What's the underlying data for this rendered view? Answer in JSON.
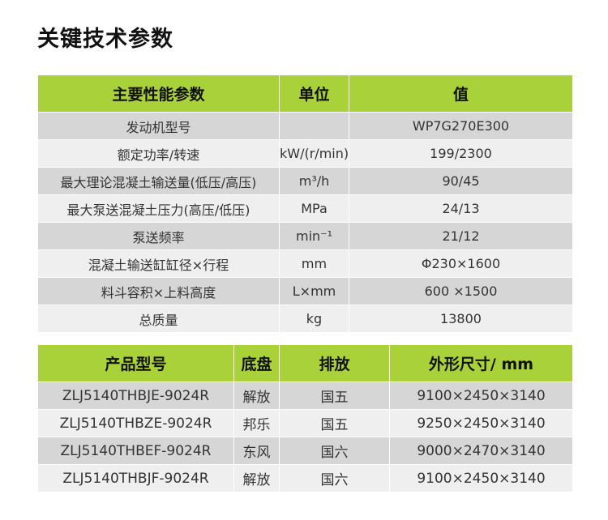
{
  "title": "关键技术参数",
  "spec_table": {
    "headers": [
      "主要性能参数",
      "单位",
      "值"
    ],
    "rows": [
      {
        "param": "发动机型号",
        "unit": "",
        "value": "WP7G270E300"
      },
      {
        "param": "额定功率/转速",
        "unit": "kW/(r/min)",
        "value": "199/2300"
      },
      {
        "param": "最大理论混凝土输送量(低压/高压)",
        "unit": "m³/h",
        "value": "90/45"
      },
      {
        "param": "最大泵送混凝土压力(高压/低压)",
        "unit": "MPa",
        "value": "24/13"
      },
      {
        "param": "泵送频率",
        "unit": "min⁻¹",
        "value": "21/12"
      },
      {
        "param": "混凝土输送缸缸径×行程",
        "unit": "mm",
        "value": "Φ230×1600"
      },
      {
        "param": "料斗容积×上料高度",
        "unit": "L×mm",
        "value": "600 ×1500"
      },
      {
        "param": "总质量",
        "unit": "kg",
        "value": "13800"
      }
    ]
  },
  "model_table": {
    "headers": [
      "产品型号",
      "底盘",
      "排放",
      "外形尺寸/ mm"
    ],
    "rows": [
      {
        "model": "ZLJ5140THBJE-9024R",
        "chassis": "解放",
        "emission": "国五",
        "size": "9100×2450×3140"
      },
      {
        "model": "ZLJ5140THBZE-9024R",
        "chassis": "邦乐",
        "emission": "国五",
        "size": "9250×2450×3140"
      },
      {
        "model": "ZLJ5140THBEF-9024R",
        "chassis": "东风",
        "emission": "国六",
        "size": "9000×2470×3140"
      },
      {
        "model": "ZLJ5140THBJF-9024R",
        "chassis": "解放",
        "emission": "国六",
        "size": "9100×2450×3140"
      }
    ]
  },
  "colors": {
    "header_green": "#a9d13a",
    "row_dark": "#d6d6d6",
    "row_light": "#efefef"
  }
}
